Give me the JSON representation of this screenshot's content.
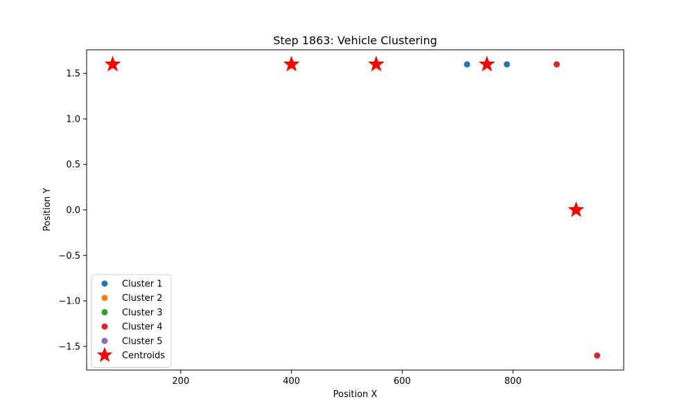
{
  "chart_data": {
    "type": "scatter",
    "title": "Step 1863: Vehicle Clustering",
    "xlabel": "Position X",
    "ylabel": "Position Y",
    "xlim": [
      30,
      1000
    ],
    "ylim": [
      -1.76,
      1.76
    ],
    "xticks": [
      200,
      400,
      600,
      800
    ],
    "yticks": [
      -1.5,
      -1.0,
      -0.5,
      0.0,
      0.5,
      1.0,
      1.5
    ],
    "xtick_labels": [
      "200",
      "400",
      "600",
      "800"
    ],
    "ytick_labels": [
      "−1.5",
      "−1.0",
      "−0.5",
      "0.0",
      "0.5",
      "1.0",
      "1.5"
    ],
    "grid": false,
    "legend_position": "lower-left",
    "series": [
      {
        "name": "Cluster 1",
        "color": "#1f77b4",
        "marker": "circle",
        "points": [
          [
            717,
            1.6
          ],
          [
            789,
            1.6
          ]
        ]
      },
      {
        "name": "Cluster 2",
        "color": "#ff7f0e",
        "marker": "circle",
        "points": []
      },
      {
        "name": "Cluster 3",
        "color": "#2ca02c",
        "marker": "circle",
        "points": []
      },
      {
        "name": "Cluster 4",
        "color": "#d62728",
        "marker": "circle",
        "points": [
          [
            879,
            1.6
          ],
          [
            952,
            -1.6
          ]
        ]
      },
      {
        "name": "Cluster 5",
        "color": "#9467bd",
        "marker": "circle",
        "points": []
      },
      {
        "name": "Centroids",
        "color": "#ff0000",
        "marker": "star",
        "points": [
          [
            77,
            1.6
          ],
          [
            400,
            1.6
          ],
          [
            553,
            1.6
          ],
          [
            753,
            1.6
          ],
          [
            914,
            0.0
          ]
        ]
      }
    ]
  }
}
